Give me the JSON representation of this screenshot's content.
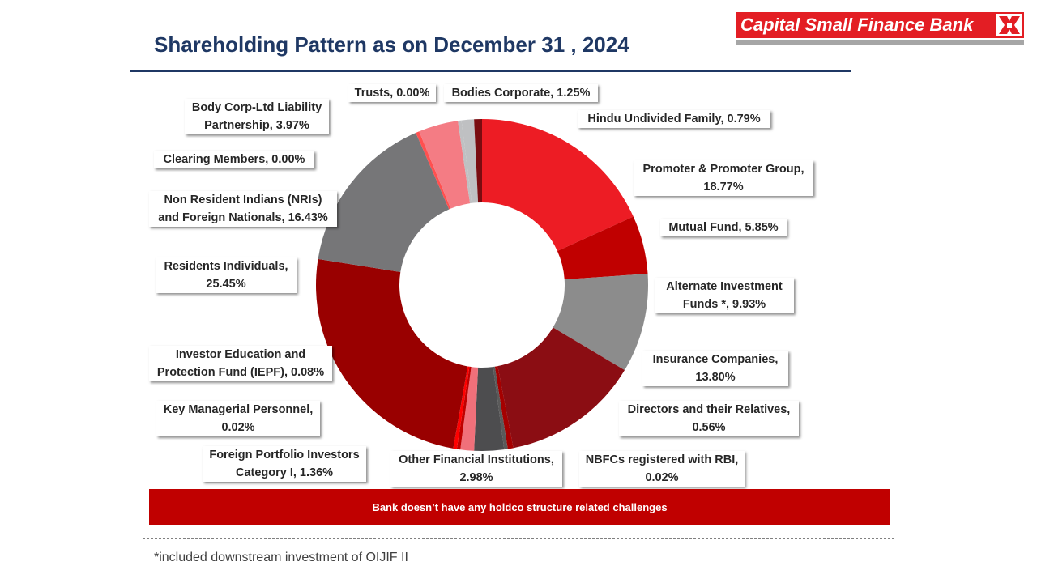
{
  "title": "Shareholding Pattern as on December 31 , 2024",
  "brand": {
    "name": "Capital Small Finance Bank",
    "color": "#e31e24"
  },
  "banner": "Bank doesn’t have any holdco structure related challenges",
  "footnote": "*included downstream investment of OIJIF II",
  "chart_data": {
    "type": "pie",
    "subtype": "donut",
    "title": "Shareholding Pattern as on December 31 , 2024",
    "slices": [
      {
        "label": "Promoter & Promoter Group",
        "value": 18.77,
        "color": "#ed1c24",
        "text": [
          "Promoter & Promoter Group,",
          "18.77%"
        ]
      },
      {
        "label": "Mutual Fund",
        "value": 5.85,
        "color": "#c00000",
        "text": [
          "Mutual Fund, 5.85%"
        ]
      },
      {
        "label": "Alternate Investment Funds *",
        "value": 9.93,
        "color": "#8c8c8c",
        "text": [
          "Alternate Investment",
          "Funds *, 9.93%"
        ]
      },
      {
        "label": "Insurance Companies",
        "value": 13.8,
        "color": "#8b0d13",
        "text": [
          "Insurance Companies,",
          "13.80%"
        ]
      },
      {
        "label": "Directors and their Relatives",
        "value": 0.56,
        "color": "#a50000",
        "text": [
          "Directors and their Relatives,",
          "0.56%"
        ]
      },
      {
        "label": "NBFCs registered with RBI",
        "value": 0.02,
        "color": "#5a5a5a",
        "text": [
          "NBFCs registered with RBI,",
          "0.02%"
        ]
      },
      {
        "label": "Other Financial Institutions",
        "value": 2.98,
        "color": "#4d4d4f",
        "text": [
          "Other Financial Institutions,",
          "2.98%"
        ]
      },
      {
        "label": "Foreign Portfolio Investors Category I",
        "value": 1.36,
        "color": "#f0707a",
        "text": [
          "Foreign Portfolio Investors",
          "Category I, 1.36%"
        ]
      },
      {
        "label": "Key Managerial Personnel",
        "value": 0.02,
        "color": "#c00000",
        "text": [
          "Key Managerial Personnel,",
          "0.02%"
        ]
      },
      {
        "label": "Investor Education and Protection Fund (IEPF)",
        "value": 0.08,
        "color": "#ff0000",
        "text": [
          "Investor Education and",
          "Protection Fund (IEPF), 0.08%"
        ]
      },
      {
        "label": "Residents Individuals",
        "value": 25.45,
        "color": "#990000",
        "text": [
          "Residents Individuals,",
          "25.45%"
        ]
      },
      {
        "label": "Non Resident Indians (NRIs) and Foreign Nationals",
        "value": 16.43,
        "color": "#767678",
        "text": [
          "Non Resident Indians (NRIs)",
          "and Foreign Nationals, 16.43%"
        ]
      },
      {
        "label": "Clearing Members",
        "value": 0.0,
        "color": "#ff5050",
        "text": [
          "Clearing Members, 0.00%"
        ]
      },
      {
        "label": "Body Corp-Ltd Liability Partnership",
        "value": 3.97,
        "color": "#f47c84",
        "text": [
          "Body Corp-Ltd Liability",
          "Partnership, 3.97%"
        ]
      },
      {
        "label": "Trusts",
        "value": 0.0,
        "color": "#bfc0c2",
        "text": [
          "Trusts, 0.00%"
        ]
      },
      {
        "label": "Bodies Corporate",
        "value": 1.25,
        "color": "#bfc0c2",
        "text": [
          "Bodies Corporate, 1.25%"
        ]
      },
      {
        "label": "Hindu Undivided Family",
        "value": 0.79,
        "color": "#7a0c10",
        "text": [
          "Hindu Undivided Family, 0.79%"
        ]
      }
    ]
  }
}
